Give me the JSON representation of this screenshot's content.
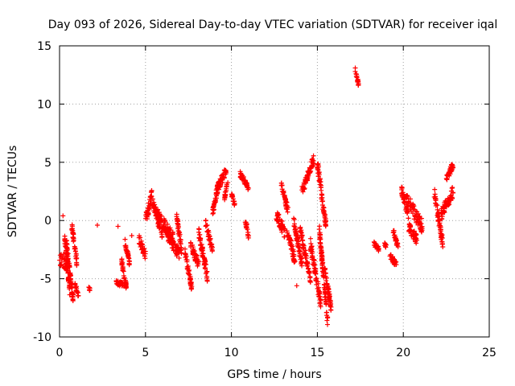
{
  "chart_data": {
    "type": "scatter",
    "title": "Day 093 of 2026, Sidereal Day-to-day VTEC variation (SDTVAR) for receiver iqal",
    "xlabel": "GPS time / hours",
    "ylabel": "SDTVAR / TECUs",
    "xlim": [
      0,
      25
    ],
    "ylim": [
      -10,
      15
    ],
    "xticks": [
      0,
      5,
      10,
      15,
      20,
      25
    ],
    "yticks": [
      -10,
      -5,
      0,
      5,
      10,
      15
    ],
    "grid": true,
    "marker": "+",
    "color": "#ff0000",
    "series": [
      {
        "name": "SDTVAR",
        "segments": [
          {
            "x": [
              0.0,
              0.5
            ],
            "y": [
              -3.2,
              -3.8
            ],
            "spread": 1.2
          },
          {
            "x": [
              0.3,
              0.6
            ],
            "y": [
              -1.5,
              -6.2
            ],
            "spread": 0.8
          },
          {
            "x": [
              0.4,
              0.8
            ],
            "y": [
              -2.0,
              -6.8
            ],
            "spread": 0.9
          },
          {
            "x": [
              0.7,
              1.0
            ],
            "y": [
              -0.4,
              -3.5
            ],
            "spread": 0.8
          },
          {
            "x": [
              0.9,
              1.1
            ],
            "y": [
              -5.5,
              -6.5
            ],
            "spread": 0.5
          },
          {
            "x": [
              1.7,
              1.8
            ],
            "y": [
              -5.8,
              -6.0
            ],
            "spread": 0.3
          },
          {
            "x": [
              3.3,
              3.7
            ],
            "y": [
              -5.2,
              -5.6
            ],
            "spread": 0.5
          },
          {
            "x": [
              3.6,
              3.9
            ],
            "y": [
              -3.4,
              -5.8
            ],
            "spread": 0.6
          },
          {
            "x": [
              3.8,
              4.1
            ],
            "y": [
              -1.8,
              -3.8
            ],
            "spread": 0.6
          },
          {
            "x": [
              4.6,
              5.0
            ],
            "y": [
              -1.5,
              -3.0
            ],
            "spread": 0.8
          },
          {
            "x": [
              5.0,
              5.4
            ],
            "y": [
              0.0,
              2.3
            ],
            "spread": 1.0
          },
          {
            "x": [
              5.4,
              6.0
            ],
            "y": [
              1.5,
              -1.2
            ],
            "spread": 1.0
          },
          {
            "x": [
              5.7,
              6.6
            ],
            "y": [
              0.5,
              -1.5
            ],
            "spread": 1.0
          },
          {
            "x": [
              6.2,
              7.0
            ],
            "y": [
              -1.0,
              -3.0
            ],
            "spread": 1.0
          },
          {
            "x": [
              6.8,
              7.1
            ],
            "y": [
              0.5,
              -2.5
            ],
            "spread": 0.8
          },
          {
            "x": [
              7.3,
              7.7
            ],
            "y": [
              -2.8,
              -5.8
            ],
            "spread": 0.8
          },
          {
            "x": [
              7.6,
              8.1
            ],
            "y": [
              -2.0,
              -3.8
            ],
            "spread": 0.8
          },
          {
            "x": [
              8.1,
              8.6
            ],
            "y": [
              -1.0,
              -4.8
            ],
            "spread": 0.9
          },
          {
            "x": [
              8.5,
              8.9
            ],
            "y": [
              -0.2,
              -2.6
            ],
            "spread": 0.7
          },
          {
            "x": [
              8.9,
              9.2
            ],
            "y": [
              0.6,
              2.8
            ],
            "spread": 0.7
          },
          {
            "x": [
              9.1,
              9.7
            ],
            "y": [
              2.5,
              4.3
            ],
            "spread": 0.8
          },
          {
            "x": [
              9.6,
              9.8
            ],
            "y": [
              2.0,
              3.5
            ],
            "spread": 0.5
          },
          {
            "x": [
              10.0,
              10.2
            ],
            "y": [
              2.3,
              1.3
            ],
            "spread": 0.3
          },
          {
            "x": [
              10.5,
              11.0
            ],
            "y": [
              4.0,
              2.8
            ],
            "spread": 0.5
          },
          {
            "x": [
              10.8,
              11.0
            ],
            "y": [
              0.0,
              -1.4
            ],
            "spread": 0.5
          },
          {
            "x": [
              12.6,
              13.1
            ],
            "y": [
              0.5,
              -1.0
            ],
            "spread": 1.0
          },
          {
            "x": [
              12.9,
              13.3
            ],
            "y": [
              3.0,
              0.8
            ],
            "spread": 0.7
          },
          {
            "x": [
              13.2,
              13.7
            ],
            "y": [
              -0.5,
              -3.5
            ],
            "spread": 0.8
          },
          {
            "x": [
              13.6,
              14.1
            ],
            "y": [
              0.2,
              -3.8
            ],
            "spread": 0.8
          },
          {
            "x": [
              14.0,
              14.6
            ],
            "y": [
              -0.8,
              -5.0
            ],
            "spread": 0.8
          },
          {
            "x": [
              14.1,
              14.8
            ],
            "y": [
              2.5,
              5.3
            ],
            "spread": 0.8
          },
          {
            "x": [
              14.6,
              15.2
            ],
            "y": [
              -2.0,
              -7.2
            ],
            "spread": 1.0
          },
          {
            "x": [
              15.0,
              15.5
            ],
            "y": [
              4.9,
              -0.5
            ],
            "spread": 1.0
          },
          {
            "x": [
              15.1,
              15.6
            ],
            "y": [
              -0.5,
              -8.8
            ],
            "spread": 1.0
          },
          {
            "x": [
              15.4,
              15.8
            ],
            "y": [
              -4.0,
              -7.5
            ],
            "spread": 0.8
          },
          {
            "x": [
              17.2,
              17.4
            ],
            "y": [
              13.0,
              11.7
            ],
            "spread": 0.4
          },
          {
            "x": [
              18.3,
              18.6
            ],
            "y": [
              -2.0,
              -2.5
            ],
            "spread": 0.4
          },
          {
            "x": [
              18.9,
              19.0
            ],
            "y": [
              -2.0,
              -2.2
            ],
            "spread": 0.3
          },
          {
            "x": [
              19.2,
              19.6
            ],
            "y": [
              -3.0,
              -3.8
            ],
            "spread": 0.5
          },
          {
            "x": [
              19.4,
              19.7
            ],
            "y": [
              -0.8,
              -2.3
            ],
            "spread": 0.5
          },
          {
            "x": [
              19.9,
              20.3
            ],
            "y": [
              2.6,
              0.5
            ],
            "spread": 0.8
          },
          {
            "x": [
              20.2,
              21.1
            ],
            "y": [
              1.8,
              -0.5
            ],
            "spread": 1.2
          },
          {
            "x": [
              20.3,
              20.8
            ],
            "y": [
              -0.5,
              -1.7
            ],
            "spread": 0.8
          },
          {
            "x": [
              21.8,
              22.3
            ],
            "y": [
              2.5,
              -2.0
            ],
            "spread": 1.0
          },
          {
            "x": [
              22.2,
              22.9
            ],
            "y": [
              0.5,
              2.5
            ],
            "spread": 1.0
          },
          {
            "x": [
              22.5,
              22.9
            ],
            "y": [
              3.6,
              4.8
            ],
            "spread": 0.6
          }
        ],
        "isolated": [
          {
            "x": 0.2,
            "y": 0.4
          },
          {
            "x": 2.2,
            "y": -0.4
          },
          {
            "x": 3.4,
            "y": -0.5
          },
          {
            "x": 4.2,
            "y": -1.3
          },
          {
            "x": 10.9,
            "y": -0.3
          },
          {
            "x": 13.8,
            "y": -5.6
          },
          {
            "x": 19.0,
            "y": -2.1
          }
        ]
      }
    ]
  }
}
